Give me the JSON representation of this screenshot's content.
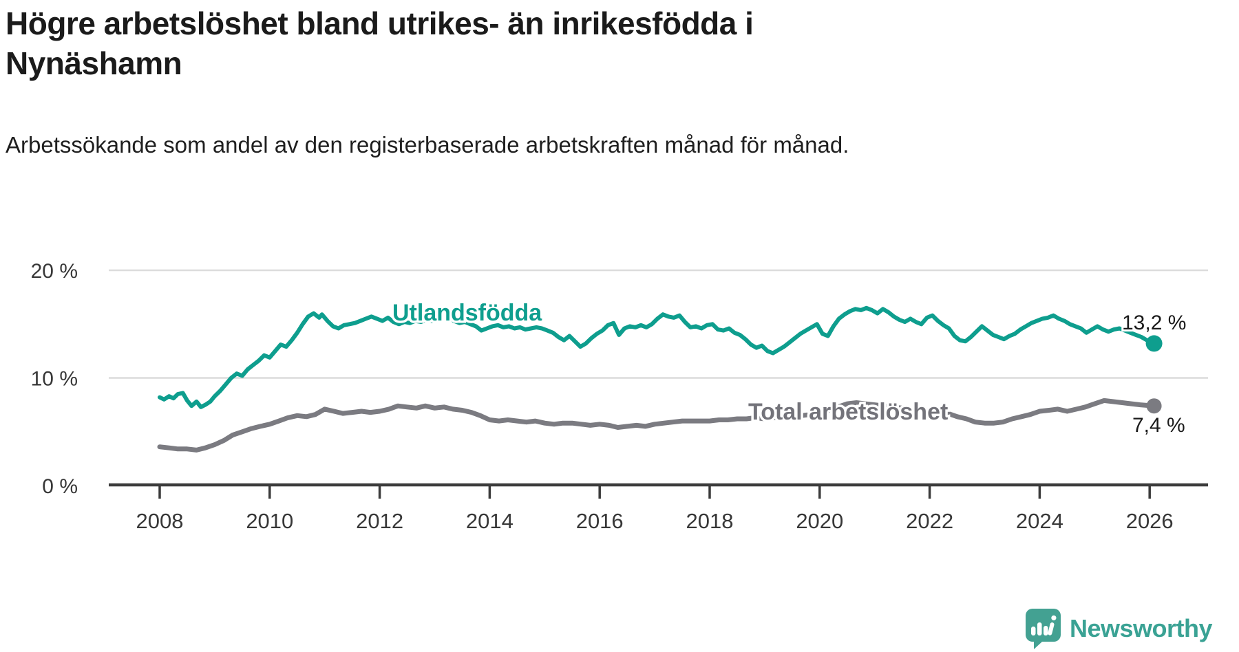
{
  "title": "Högre arbetslöshet bland utrikes- än inrikesfödda i Nynäshamn",
  "subtitle": "Arbetssökande som andel av den registerbaserade arbetskraften månad för månad.",
  "branding": {
    "wordmark": "Newsworthy",
    "icon": "newsworthy-chart-bubble-icon",
    "brand_color": "#3aa294",
    "icon_color": "#43a192"
  },
  "chart_data": {
    "type": "line",
    "unit": "%",
    "grid": "horizontal",
    "legend_position": "inline-labels-on-lines",
    "xlim": [
      2007.7,
      2026.6
    ],
    "ylim": [
      0,
      20.5
    ],
    "x_ticks": [
      2008,
      2010,
      2012,
      2014,
      2016,
      2018,
      2020,
      2022,
      2024,
      2026
    ],
    "y_ticks": [
      {
        "value": 0,
        "label": "0 %"
      },
      {
        "value": 10,
        "label": "10 %"
      },
      {
        "value": 20,
        "label": "20 %"
      }
    ],
    "colors": {
      "foreign_born_line": "#0e9e8e",
      "total_line": "#7b7b81",
      "gridline": "#dcdcdc",
      "axis": "#3b3b3b",
      "value_label_text": "#1a1a1a"
    },
    "series": [
      {
        "name": "Utlandsfödda",
        "color": "#0e9e8e",
        "end_label": "13,2 %",
        "end_value": 13.2,
        "points": [
          [
            2008.0,
            8.2
          ],
          [
            2008.08,
            8.0
          ],
          [
            2008.17,
            8.3
          ],
          [
            2008.25,
            8.1
          ],
          [
            2008.33,
            8.5
          ],
          [
            2008.42,
            8.6
          ],
          [
            2008.5,
            7.9
          ],
          [
            2008.58,
            7.4
          ],
          [
            2008.67,
            7.8
          ],
          [
            2008.75,
            7.3
          ],
          [
            2008.83,
            7.5
          ],
          [
            2008.92,
            7.8
          ],
          [
            2009.0,
            8.3
          ],
          [
            2009.1,
            8.8
          ],
          [
            2009.2,
            9.4
          ],
          [
            2009.3,
            10.0
          ],
          [
            2009.4,
            10.4
          ],
          [
            2009.5,
            10.2
          ],
          [
            2009.6,
            10.8
          ],
          [
            2009.7,
            11.2
          ],
          [
            2009.8,
            11.6
          ],
          [
            2009.9,
            12.1
          ],
          [
            2010.0,
            11.9
          ],
          [
            2010.1,
            12.5
          ],
          [
            2010.2,
            13.1
          ],
          [
            2010.3,
            12.9
          ],
          [
            2010.4,
            13.5
          ],
          [
            2010.5,
            14.2
          ],
          [
            2010.6,
            15.0
          ],
          [
            2010.7,
            15.7
          ],
          [
            2010.8,
            16.0
          ],
          [
            2010.9,
            15.6
          ],
          [
            2010.95,
            15.9
          ],
          [
            2011.05,
            15.3
          ],
          [
            2011.15,
            14.8
          ],
          [
            2011.25,
            14.6
          ],
          [
            2011.35,
            14.9
          ],
          [
            2011.45,
            15.0
          ],
          [
            2011.55,
            15.1
          ],
          [
            2011.65,
            15.3
          ],
          [
            2011.75,
            15.5
          ],
          [
            2011.85,
            15.7
          ],
          [
            2011.95,
            15.5
          ],
          [
            2012.05,
            15.3
          ],
          [
            2012.15,
            15.6
          ],
          [
            2012.25,
            15.2
          ],
          [
            2012.35,
            15.0
          ],
          [
            2012.45,
            15.2
          ],
          [
            2012.55,
            15.1
          ],
          [
            2012.65,
            15.3
          ],
          [
            2012.75,
            15.2
          ],
          [
            2012.85,
            15.4
          ],
          [
            2012.95,
            15.3
          ],
          [
            2013.05,
            15.5
          ],
          [
            2013.15,
            15.4
          ],
          [
            2013.25,
            15.6
          ],
          [
            2013.35,
            15.3
          ],
          [
            2013.45,
            15.1
          ],
          [
            2013.55,
            15.2
          ],
          [
            2013.65,
            15.0
          ],
          [
            2013.75,
            14.8
          ],
          [
            2013.85,
            14.4
          ],
          [
            2013.95,
            14.6
          ],
          [
            2014.05,
            14.8
          ],
          [
            2014.15,
            14.9
          ],
          [
            2014.25,
            14.7
          ],
          [
            2014.35,
            14.8
          ],
          [
            2014.45,
            14.6
          ],
          [
            2014.55,
            14.7
          ],
          [
            2014.65,
            14.5
          ],
          [
            2014.75,
            14.6
          ],
          [
            2014.85,
            14.7
          ],
          [
            2014.95,
            14.6
          ],
          [
            2015.05,
            14.4
          ],
          [
            2015.15,
            14.2
          ],
          [
            2015.25,
            13.8
          ],
          [
            2015.35,
            13.5
          ],
          [
            2015.45,
            13.9
          ],
          [
            2015.55,
            13.4
          ],
          [
            2015.65,
            12.9
          ],
          [
            2015.75,
            13.2
          ],
          [
            2015.85,
            13.7
          ],
          [
            2015.95,
            14.1
          ],
          [
            2016.05,
            14.4
          ],
          [
            2016.15,
            14.9
          ],
          [
            2016.25,
            15.1
          ],
          [
            2016.35,
            14.0
          ],
          [
            2016.45,
            14.6
          ],
          [
            2016.55,
            14.8
          ],
          [
            2016.65,
            14.7
          ],
          [
            2016.75,
            14.9
          ],
          [
            2016.85,
            14.7
          ],
          [
            2016.95,
            15.0
          ],
          [
            2017.05,
            15.5
          ],
          [
            2017.15,
            15.9
          ],
          [
            2017.25,
            15.7
          ],
          [
            2017.35,
            15.6
          ],
          [
            2017.45,
            15.8
          ],
          [
            2017.55,
            15.2
          ],
          [
            2017.65,
            14.7
          ],
          [
            2017.75,
            14.8
          ],
          [
            2017.85,
            14.6
          ],
          [
            2017.95,
            14.9
          ],
          [
            2018.05,
            15.0
          ],
          [
            2018.15,
            14.5
          ],
          [
            2018.25,
            14.4
          ],
          [
            2018.35,
            14.6
          ],
          [
            2018.45,
            14.2
          ],
          [
            2018.55,
            14.0
          ],
          [
            2018.65,
            13.6
          ],
          [
            2018.75,
            13.1
          ],
          [
            2018.85,
            12.8
          ],
          [
            2018.95,
            13.0
          ],
          [
            2019.05,
            12.5
          ],
          [
            2019.15,
            12.3
          ],
          [
            2019.25,
            12.6
          ],
          [
            2019.35,
            12.9
          ],
          [
            2019.45,
            13.3
          ],
          [
            2019.55,
            13.7
          ],
          [
            2019.65,
            14.1
          ],
          [
            2019.75,
            14.4
          ],
          [
            2019.85,
            14.7
          ],
          [
            2019.95,
            15.0
          ],
          [
            2020.05,
            14.1
          ],
          [
            2020.15,
            13.9
          ],
          [
            2020.25,
            14.8
          ],
          [
            2020.35,
            15.5
          ],
          [
            2020.45,
            15.9
          ],
          [
            2020.55,
            16.2
          ],
          [
            2020.65,
            16.4
          ],
          [
            2020.75,
            16.3
          ],
          [
            2020.85,
            16.5
          ],
          [
            2020.95,
            16.3
          ],
          [
            2021.05,
            16.0
          ],
          [
            2021.15,
            16.4
          ],
          [
            2021.25,
            16.1
          ],
          [
            2021.35,
            15.7
          ],
          [
            2021.45,
            15.4
          ],
          [
            2021.55,
            15.2
          ],
          [
            2021.65,
            15.5
          ],
          [
            2021.75,
            15.2
          ],
          [
            2021.85,
            15.0
          ],
          [
            2021.95,
            15.6
          ],
          [
            2022.05,
            15.8
          ],
          [
            2022.15,
            15.3
          ],
          [
            2022.25,
            14.9
          ],
          [
            2022.35,
            14.6
          ],
          [
            2022.45,
            13.9
          ],
          [
            2022.55,
            13.5
          ],
          [
            2022.65,
            13.4
          ],
          [
            2022.75,
            13.8
          ],
          [
            2022.85,
            14.3
          ],
          [
            2022.95,
            14.8
          ],
          [
            2023.05,
            14.4
          ],
          [
            2023.15,
            14.0
          ],
          [
            2023.25,
            13.8
          ],
          [
            2023.35,
            13.6
          ],
          [
            2023.45,
            13.9
          ],
          [
            2023.55,
            14.1
          ],
          [
            2023.65,
            14.5
          ],
          [
            2023.75,
            14.8
          ],
          [
            2023.85,
            15.1
          ],
          [
            2023.95,
            15.3
          ],
          [
            2024.05,
            15.5
          ],
          [
            2024.15,
            15.6
          ],
          [
            2024.25,
            15.8
          ],
          [
            2024.35,
            15.5
          ],
          [
            2024.45,
            15.3
          ],
          [
            2024.55,
            15.0
          ],
          [
            2024.65,
            14.8
          ],
          [
            2024.75,
            14.6
          ],
          [
            2024.85,
            14.2
          ],
          [
            2024.95,
            14.5
          ],
          [
            2025.05,
            14.8
          ],
          [
            2025.15,
            14.5
          ],
          [
            2025.25,
            14.3
          ],
          [
            2025.35,
            14.5
          ],
          [
            2025.45,
            14.6
          ],
          [
            2025.55,
            14.4
          ],
          [
            2025.65,
            14.2
          ],
          [
            2025.75,
            14.0
          ],
          [
            2025.85,
            13.8
          ],
          [
            2025.95,
            13.5
          ],
          [
            2026.08,
            13.2
          ]
        ]
      },
      {
        "name": "Total arbetslöshet",
        "color": "#7b7b81",
        "end_label": "7,4 %",
        "end_value": 7.4,
        "points": [
          [
            2008.0,
            3.6
          ],
          [
            2008.17,
            3.5
          ],
          [
            2008.33,
            3.4
          ],
          [
            2008.5,
            3.4
          ],
          [
            2008.67,
            3.3
          ],
          [
            2008.83,
            3.5
          ],
          [
            2009.0,
            3.8
          ],
          [
            2009.17,
            4.2
          ],
          [
            2009.33,
            4.7
          ],
          [
            2009.5,
            5.0
          ],
          [
            2009.67,
            5.3
          ],
          [
            2009.83,
            5.5
          ],
          [
            2010.0,
            5.7
          ],
          [
            2010.17,
            6.0
          ],
          [
            2010.33,
            6.3
          ],
          [
            2010.5,
            6.5
          ],
          [
            2010.67,
            6.4
          ],
          [
            2010.83,
            6.6
          ],
          [
            2011.0,
            7.1
          ],
          [
            2011.17,
            6.9
          ],
          [
            2011.33,
            6.7
          ],
          [
            2011.5,
            6.8
          ],
          [
            2011.67,
            6.9
          ],
          [
            2011.83,
            6.8
          ],
          [
            2012.0,
            6.9
          ],
          [
            2012.17,
            7.1
          ],
          [
            2012.33,
            7.4
          ],
          [
            2012.5,
            7.3
          ],
          [
            2012.67,
            7.2
          ],
          [
            2012.83,
            7.4
          ],
          [
            2013.0,
            7.2
          ],
          [
            2013.17,
            7.3
          ],
          [
            2013.33,
            7.1
          ],
          [
            2013.5,
            7.0
          ],
          [
            2013.67,
            6.8
          ],
          [
            2013.83,
            6.5
          ],
          [
            2014.0,
            6.1
          ],
          [
            2014.17,
            6.0
          ],
          [
            2014.33,
            6.1
          ],
          [
            2014.5,
            6.0
          ],
          [
            2014.67,
            5.9
          ],
          [
            2014.83,
            6.0
          ],
          [
            2015.0,
            5.8
          ],
          [
            2015.17,
            5.7
          ],
          [
            2015.33,
            5.8
          ],
          [
            2015.5,
            5.8
          ],
          [
            2015.67,
            5.7
          ],
          [
            2015.83,
            5.6
          ],
          [
            2016.0,
            5.7
          ],
          [
            2016.17,
            5.6
          ],
          [
            2016.33,
            5.4
          ],
          [
            2016.5,
            5.5
          ],
          [
            2016.67,
            5.6
          ],
          [
            2016.83,
            5.5
          ],
          [
            2017.0,
            5.7
          ],
          [
            2017.17,
            5.8
          ],
          [
            2017.33,
            5.9
          ],
          [
            2017.5,
            6.0
          ],
          [
            2017.67,
            6.0
          ],
          [
            2017.83,
            6.0
          ],
          [
            2018.0,
            6.0
          ],
          [
            2018.17,
            6.1
          ],
          [
            2018.33,
            6.1
          ],
          [
            2018.5,
            6.2
          ],
          [
            2018.67,
            6.2
          ],
          [
            2018.83,
            6.3
          ],
          [
            2019.0,
            6.2
          ],
          [
            2019.17,
            6.3
          ],
          [
            2019.33,
            6.3
          ],
          [
            2019.5,
            6.4
          ],
          [
            2019.67,
            6.5
          ],
          [
            2019.83,
            6.6
          ],
          [
            2020.0,
            6.7
          ],
          [
            2020.17,
            7.0
          ],
          [
            2020.33,
            7.3
          ],
          [
            2020.5,
            7.6
          ],
          [
            2020.67,
            7.7
          ],
          [
            2020.83,
            7.6
          ],
          [
            2021.0,
            7.5
          ],
          [
            2021.17,
            7.4
          ],
          [
            2021.33,
            7.3
          ],
          [
            2021.5,
            7.2
          ],
          [
            2021.67,
            7.1
          ],
          [
            2021.83,
            7.0
          ],
          [
            2022.0,
            7.0
          ],
          [
            2022.17,
            6.9
          ],
          [
            2022.33,
            6.7
          ],
          [
            2022.5,
            6.4
          ],
          [
            2022.67,
            6.2
          ],
          [
            2022.83,
            5.9
          ],
          [
            2023.0,
            5.8
          ],
          [
            2023.17,
            5.8
          ],
          [
            2023.33,
            5.9
          ],
          [
            2023.5,
            6.2
          ],
          [
            2023.67,
            6.4
          ],
          [
            2023.83,
            6.6
          ],
          [
            2024.0,
            6.9
          ],
          [
            2024.17,
            7.0
          ],
          [
            2024.33,
            7.1
          ],
          [
            2024.5,
            6.9
          ],
          [
            2024.67,
            7.1
          ],
          [
            2024.83,
            7.3
          ],
          [
            2025.0,
            7.6
          ],
          [
            2025.17,
            7.9
          ],
          [
            2025.33,
            7.8
          ],
          [
            2025.5,
            7.7
          ],
          [
            2025.67,
            7.6
          ],
          [
            2025.83,
            7.5
          ],
          [
            2026.08,
            7.4
          ]
        ]
      }
    ]
  }
}
